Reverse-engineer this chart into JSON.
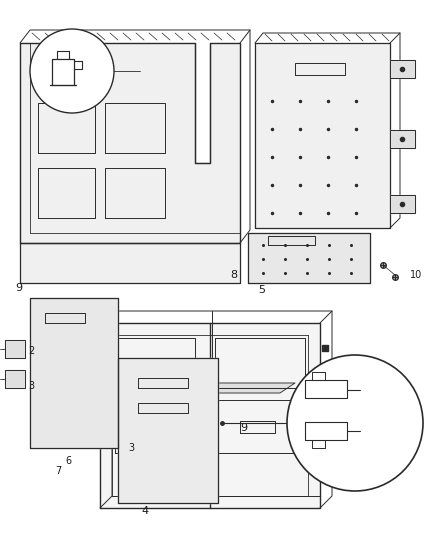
{
  "bg_color": "#ffffff",
  "fig_width": 4.38,
  "fig_height": 5.33,
  "dpi": 100,
  "line_color": "#2a2a2a",
  "text_color": "#1a1a1a",
  "fill_light": "#f0f0f0",
  "fill_mid": "#e0e0e0",
  "fill_dark": "#cccccc",
  "hatching_color": "#555555"
}
